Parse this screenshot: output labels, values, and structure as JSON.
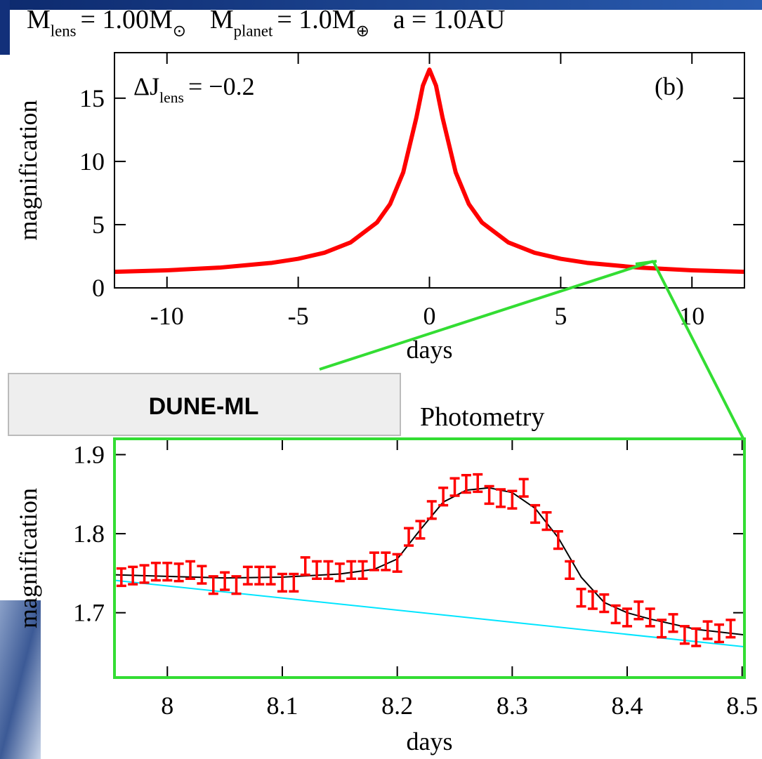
{
  "label": "DUNE-ML",
  "chart_data": [
    {
      "type": "line",
      "title": [
        {
          "text": "M"
        },
        {
          "text": "lens",
          "sub": true
        },
        {
          "text": "= 1.00M"
        },
        {
          "text": "⊙",
          "sub": true
        },
        {
          "text": "M"
        },
        {
          "text": "planet",
          "sub": true
        },
        {
          "text": "= 1.0M"
        },
        {
          "text": "⊕",
          "sub": true
        },
        {
          "text": "a = 1.0AU"
        }
      ],
      "annotations": [
        [
          {
            "text": "ΔJ"
          },
          {
            "text": "lens",
            "sub": true
          },
          {
            "text": "= −0.2"
          }
        ],
        [
          {
            "text": "(b)"
          }
        ]
      ],
      "x_label": "days",
      "y_label": "magnification",
      "xlim": [
        -12,
        12
      ],
      "ylim": [
        0,
        18.6
      ],
      "xticks": [
        -10,
        -5,
        0,
        5,
        10
      ],
      "yticks": [
        0,
        5,
        10,
        15
      ],
      "series": [
        {
          "color": "#ff0000",
          "x": [
            -12,
            -10,
            -8,
            -6,
            -5,
            -4,
            -3,
            -2,
            -1.5,
            -1,
            -0.5,
            -0.25,
            0,
            0.25,
            0.5,
            1,
            1.5,
            2,
            3,
            4,
            5,
            6,
            8,
            10,
            12
          ],
          "values": [
            1.27,
            1.39,
            1.6,
            1.98,
            2.3,
            2.78,
            3.6,
            5.17,
            6.63,
            9.13,
            13.45,
            15.99,
            17.26,
            15.99,
            13.45,
            9.13,
            6.63,
            5.17,
            3.6,
            2.78,
            2.3,
            1.98,
            1.6,
            1.39,
            1.27
          ]
        }
      ]
    },
    {
      "type": "line",
      "title": [
        {
          "text": "Photometry"
        }
      ],
      "x_label": "days",
      "y_label": "magnification",
      "xlim": [
        7.954,
        8.502
      ],
      "ylim": [
        1.618,
        1.92
      ],
      "xticks": [
        8,
        8.1,
        8.2,
        8.3,
        8.4,
        8.5
      ],
      "yticks": [
        1.7,
        1.8,
        1.9
      ],
      "series": [
        {
          "color": "#00e5ff",
          "x": [
            7.954,
            8.502
          ],
          "values": [
            1.741,
            1.657
          ]
        },
        {
          "color": "#000000",
          "x": [
            7.954,
            8.0,
            8.05,
            8.1,
            8.15,
            8.18,
            8.2,
            8.22,
            8.24,
            8.26,
            8.28,
            8.3,
            8.32,
            8.34,
            8.35,
            8.36,
            8.38,
            8.4,
            8.42,
            8.46,
            8.502
          ],
          "values": [
            1.748,
            1.746,
            1.744,
            1.745,
            1.749,
            1.755,
            1.768,
            1.805,
            1.84,
            1.855,
            1.858,
            1.852,
            1.832,
            1.795,
            1.77,
            1.745,
            1.713,
            1.7,
            1.692,
            1.679,
            1.672
          ]
        },
        {
          "color": "#ff0000",
          "error": 0.011,
          "x": [
            7.96,
            7.97,
            7.98,
            7.99,
            8.0,
            8.01,
            8.02,
            8.03,
            8.04,
            8.05,
            8.06,
            8.07,
            8.08,
            8.09,
            8.1,
            8.11,
            8.12,
            8.13,
            8.14,
            8.15,
            8.16,
            8.17,
            8.18,
            8.19,
            8.2,
            8.21,
            8.22,
            8.23,
            8.24,
            8.25,
            8.26,
            8.27,
            8.28,
            8.29,
            8.3,
            8.31,
            8.32,
            8.33,
            8.34,
            8.35,
            8.36,
            8.37,
            8.38,
            8.39,
            8.4,
            8.41,
            8.42,
            8.43,
            8.44,
            8.45,
            8.46,
            8.47,
            8.48,
            8.49
          ],
          "values": [
            1.745,
            1.747,
            1.749,
            1.752,
            1.752,
            1.751,
            1.754,
            1.748,
            1.735,
            1.74,
            1.735,
            1.747,
            1.747,
            1.747,
            1.738,
            1.738,
            1.759,
            1.754,
            1.754,
            1.751,
            1.754,
            1.754,
            1.765,
            1.765,
            1.763,
            1.796,
            1.805,
            1.83,
            1.847,
            1.859,
            1.863,
            1.864,
            1.849,
            1.845,
            1.843,
            1.858,
            1.825,
            1.816,
            1.792,
            1.754,
            1.719,
            1.716,
            1.712,
            1.698,
            1.694,
            1.703,
            1.694,
            1.68,
            1.687,
            1.672,
            1.669,
            1.678,
            1.674,
            1.68
          ]
        }
      ]
    }
  ]
}
